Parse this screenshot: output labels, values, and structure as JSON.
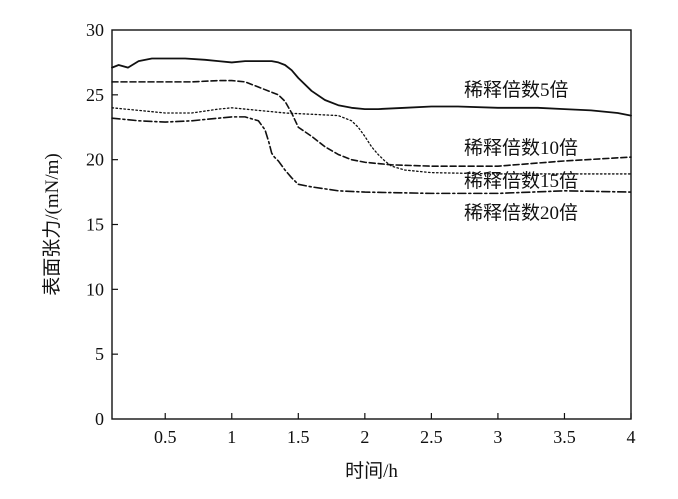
{
  "chart_data": {
    "type": "line",
    "title": "",
    "xlabel": "时间/h",
    "ylabel": "表面张力/(mN/m)",
    "xlim": [
      0.1,
      4
    ],
    "ylim": [
      0,
      30
    ],
    "xticks": [
      0.5,
      1,
      1.5,
      2,
      2.5,
      3,
      3.5,
      4
    ],
    "xtick_labels": [
      "0.5",
      "1",
      "1.5",
      "2",
      "2.5",
      "3",
      "3.5",
      "4"
    ],
    "yticks": [
      0,
      5,
      10,
      15,
      20,
      25,
      30
    ],
    "ytick_labels": [
      "0",
      "5",
      "10",
      "15",
      "20",
      "25",
      "30"
    ],
    "grid": false,
    "legend": "inline labels at right",
    "series": [
      {
        "name": "稀释倍数5倍",
        "line_style": "solid",
        "x": [
          0.1,
          0.15,
          0.22,
          0.3,
          0.4,
          0.5,
          0.65,
          0.8,
          0.9,
          1.0,
          1.1,
          1.2,
          1.3,
          1.35,
          1.4,
          1.45,
          1.5,
          1.6,
          1.7,
          1.8,
          1.9,
          2.0,
          2.1,
          2.3,
          2.5,
          2.7,
          3.0,
          3.3,
          3.5,
          3.7,
          3.9,
          4.0
        ],
        "y": [
          27.1,
          27.3,
          27.1,
          27.6,
          27.8,
          27.8,
          27.8,
          27.7,
          27.6,
          27.5,
          27.6,
          27.6,
          27.6,
          27.5,
          27.3,
          26.9,
          26.3,
          25.3,
          24.6,
          24.2,
          24.0,
          23.9,
          23.9,
          24.0,
          24.1,
          24.1,
          24.0,
          24.0,
          23.9,
          23.8,
          23.6,
          23.4
        ]
      },
      {
        "name": "稀释倍数10倍",
        "line_style": "dashed",
        "x": [
          0.1,
          0.3,
          0.5,
          0.7,
          0.9,
          1.0,
          1.1,
          1.2,
          1.3,
          1.35,
          1.4,
          1.45,
          1.5,
          1.6,
          1.7,
          1.8,
          1.9,
          2.0,
          2.2,
          2.5,
          3.0,
          3.5,
          4.0
        ],
        "y": [
          26.0,
          26.0,
          26.0,
          26.0,
          26.1,
          26.1,
          26.0,
          25.6,
          25.2,
          25.0,
          24.5,
          23.6,
          22.5,
          21.8,
          21.0,
          20.4,
          20.0,
          19.8,
          19.6,
          19.5,
          19.5,
          19.9,
          20.2
        ]
      },
      {
        "name": "稀释倍数15倍",
        "line_style": "dotted",
        "x": [
          0.1,
          0.3,
          0.5,
          0.7,
          0.9,
          1.0,
          1.2,
          1.4,
          1.6,
          1.8,
          1.9,
          1.95,
          2.0,
          2.05,
          2.1,
          2.15,
          2.2,
          2.3,
          2.5,
          3.0,
          3.5,
          4.0
        ],
        "y": [
          24.0,
          23.8,
          23.6,
          23.6,
          23.9,
          24.0,
          23.8,
          23.6,
          23.5,
          23.4,
          23.0,
          22.5,
          21.8,
          21.0,
          20.4,
          19.9,
          19.5,
          19.2,
          19.0,
          18.9,
          18.9,
          18.9
        ]
      },
      {
        "name": "稀释倍数20倍",
        "line_style": "dash-dot",
        "x": [
          0.1,
          0.3,
          0.5,
          0.7,
          0.9,
          1.0,
          1.1,
          1.2,
          1.25,
          1.28,
          1.3,
          1.32,
          1.35,
          1.4,
          1.45,
          1.5,
          1.6,
          1.8,
          2.0,
          2.5,
          3.0,
          3.5,
          4.0
        ],
        "y": [
          23.2,
          23.0,
          22.9,
          23.0,
          23.2,
          23.3,
          23.3,
          23.0,
          22.3,
          21.3,
          20.5,
          20.2,
          19.9,
          19.2,
          18.6,
          18.1,
          17.9,
          17.6,
          17.5,
          17.4,
          17.4,
          17.6,
          17.5
        ]
      }
    ]
  }
}
